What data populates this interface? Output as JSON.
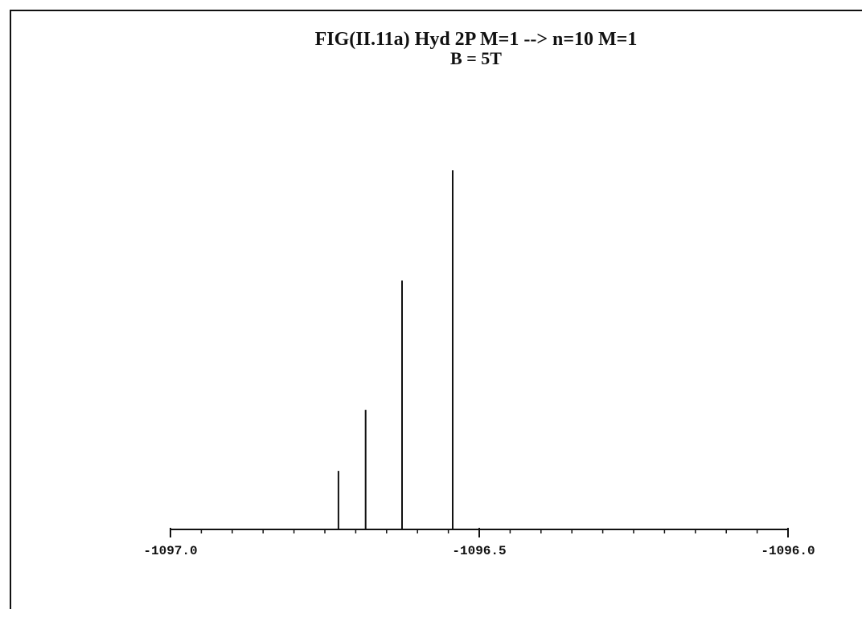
{
  "chart_data": {
    "type": "bar",
    "title": "FIG(II.11a) Hyd 2P M=1 --> n=10 M=1",
    "subtitle": "B = 5T",
    "xlabel": "",
    "ylabel": "",
    "xlim": [
      -1097.0,
      -1096.0
    ],
    "ylim": [
      0,
      1
    ],
    "grid": false,
    "x_major_ticks": [
      -1097.0,
      -1096.5,
      -1096.0
    ],
    "x_tick_labels": [
      "-1097.0",
      "-1096.5",
      "-1096.0"
    ],
    "x_minor_step": 0.05,
    "x": [
      -1096.728,
      -1096.684,
      -1096.625,
      -1096.543
    ],
    "values": [
      0.163,
      0.333,
      0.693,
      1.0
    ]
  }
}
